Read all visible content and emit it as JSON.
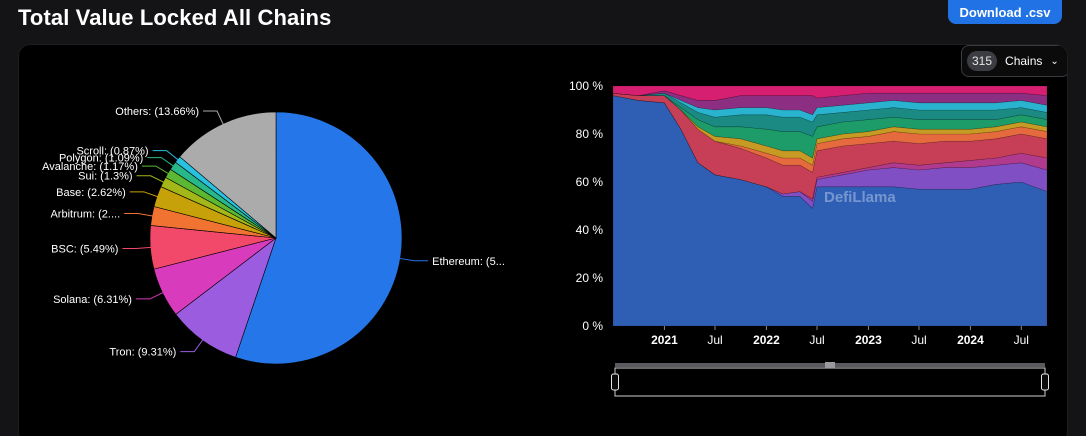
{
  "header": {
    "title": "Total Value Locked All Chains",
    "download_label": "Download .csv"
  },
  "selector": {
    "count": "315",
    "label": "Chains",
    "chevron_icon": "chevron-down-icon"
  },
  "watermark": {
    "text": "DefiLlama"
  },
  "chart_data": [
    {
      "type": "pie",
      "slices": [
        {
          "name": "Ethereum",
          "label": "Ethereum: (5...",
          "value": 54.5,
          "color": "#2576e8"
        },
        {
          "name": "Tron",
          "label": "Tron: (9.31%)",
          "value": 9.31,
          "color": "#9b5cdf"
        },
        {
          "name": "Solana",
          "label": "Solana: (6.31%)",
          "value": 6.31,
          "color": "#d83bbb"
        },
        {
          "name": "BSC",
          "label": "BSC: (5.49%)",
          "value": 5.49,
          "color": "#f2496a"
        },
        {
          "name": "Arbitrum",
          "label": "Arbitrum: (2....",
          "value": 2.4,
          "color": "#f07331"
        },
        {
          "name": "Base",
          "label": "Base: (2.62%)",
          "value": 2.62,
          "color": "#c7a10a"
        },
        {
          "name": "Sui",
          "label": "Sui: (1.3%)",
          "value": 1.3,
          "color": "#a3b718"
        },
        {
          "name": "Avalanche",
          "label": "Avalanche: (1.17%)",
          "value": 1.17,
          "color": "#5cb832"
        },
        {
          "name": "Polygon",
          "label": "Polygon: (1.09%)",
          "value": 1.09,
          "color": "#27b88a"
        },
        {
          "name": "Scroll",
          "label": "Scroll: (0.87%)",
          "value": 0.87,
          "color": "#27c2e0"
        },
        {
          "name": "Others",
          "label": "Others: (13.66%)",
          "value": 13.66,
          "color": "#ababab"
        }
      ]
    },
    {
      "type": "area",
      "stacked_percent": true,
      "x_ticks": [
        "2021",
        "Jul",
        "2022",
        "Jul",
        "2023",
        "Jul",
        "2024",
        "Jul"
      ],
      "x_tick_dates": [
        "2021-01-01",
        "2021-07-01",
        "2022-01-01",
        "2022-07-01",
        "2023-01-01",
        "2023-07-01",
        "2024-01-01",
        "2024-07-01"
      ],
      "x_tick_bold": [
        true,
        false,
        true,
        false,
        true,
        false,
        true,
        false
      ],
      "x_range": [
        "2020-07-01",
        "2024-10-01"
      ],
      "y_ticks": [
        "0 %",
        "20 %",
        "40 %",
        "60 %",
        "80 %",
        "100 %"
      ],
      "ylim": [
        0,
        100
      ],
      "dates": [
        "2020-07-01",
        "2020-10-01",
        "2021-01-01",
        "2021-03-01",
        "2021-05-01",
        "2021-07-01",
        "2021-10-01",
        "2022-01-01",
        "2022-03-01",
        "2022-05-01",
        "2022-06-15",
        "2022-07-01",
        "2022-10-01",
        "2023-01-01",
        "2023-04-01",
        "2023-07-01",
        "2023-10-01",
        "2024-01-01",
        "2024-04-01",
        "2024-07-01",
        "2024-10-01"
      ],
      "series": [
        {
          "color": "#2f5fb5",
          "values": [
            96,
            94,
            93,
            82,
            68,
            63,
            61,
            58,
            54,
            54,
            49,
            58,
            58,
            58,
            58,
            57,
            57,
            57,
            59,
            60,
            56
          ]
        },
        {
          "color": "#7f4fc3",
          "values": [
            0,
            0,
            0,
            0,
            0,
            0,
            0,
            0,
            1,
            2,
            3,
            3,
            5,
            7,
            8,
            8,
            9,
            9,
            8,
            8,
            9
          ]
        },
        {
          "color": "#b03a8e",
          "values": [
            0,
            0,
            0,
            0,
            0,
            0,
            0,
            0,
            0,
            0,
            1,
            1,
            1,
            1,
            2,
            2,
            2,
            3,
            3,
            4,
            5
          ]
        },
        {
          "color": "#c73f56",
          "values": [
            1,
            2,
            3,
            8,
            14,
            14,
            13,
            12,
            12,
            11,
            11,
            11,
            11,
            10,
            9,
            9,
            9,
            8,
            8,
            8,
            8
          ]
        },
        {
          "color": "#e56a3d",
          "values": [
            0,
            0,
            0,
            0,
            0,
            0,
            1,
            2,
            3,
            3,
            3,
            3,
            3,
            3,
            4,
            4,
            3,
            3,
            3,
            3,
            3
          ]
        },
        {
          "color": "#c79a23",
          "values": [
            0,
            0,
            0,
            0,
            1,
            2,
            3,
            3,
            3,
            3,
            3,
            2,
            2,
            2,
            2,
            2,
            2,
            2,
            2,
            2,
            2
          ]
        },
        {
          "color": "#1d9c6a",
          "values": [
            0,
            0,
            0,
            1,
            3,
            4,
            5,
            7,
            8,
            8,
            9,
            5,
            5,
            5,
            4,
            4,
            4,
            4,
            3,
            3,
            3
          ]
        },
        {
          "color": "#1a8a82",
          "values": [
            0,
            0,
            1,
            2,
            3,
            4,
            5,
            6,
            6,
            6,
            6,
            5,
            4,
            4,
            4,
            4,
            4,
            4,
            4,
            3,
            3
          ]
        },
        {
          "color": "#2ab3cf",
          "values": [
            0,
            0,
            0,
            1,
            2,
            3,
            3,
            3,
            3,
            3,
            3,
            3,
            3,
            3,
            3,
            3,
            3,
            3,
            3,
            3,
            3
          ]
        },
        {
          "color": "#8c2f82",
          "values": [
            0,
            0,
            1,
            2,
            3,
            4,
            5,
            5,
            6,
            6,
            8,
            4,
            4,
            4,
            3,
            4,
            4,
            4,
            4,
            3,
            4
          ]
        },
        {
          "color": "#d61f70",
          "values": [
            3,
            4,
            2,
            4,
            6,
            6,
            4,
            4,
            4,
            4,
            4,
            5,
            4,
            3,
            3,
            3,
            3,
            3,
            3,
            3,
            4
          ]
        }
      ]
    }
  ]
}
